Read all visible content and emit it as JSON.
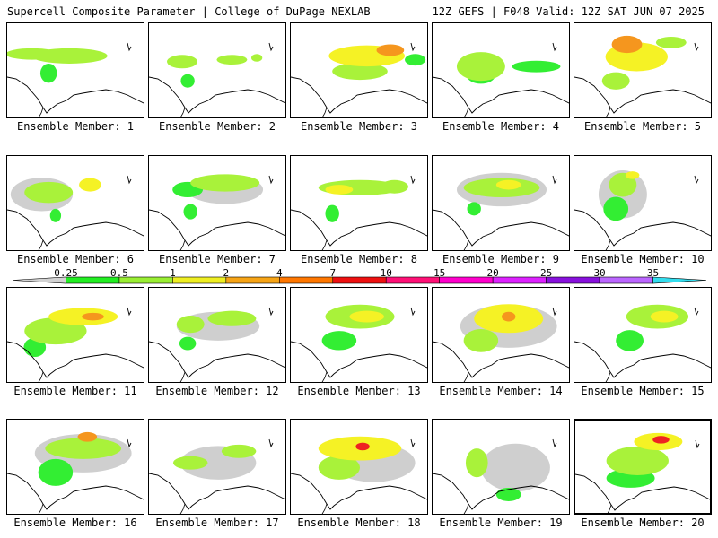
{
  "header": {
    "title_left": "Supercell Composite Parameter | College of DuPage NEXLAB",
    "title_right": "12Z GEFS | F048 Valid: 12Z SAT JUN 07 2025"
  },
  "colorbar": {
    "labels": [
      "0.25",
      "0.5",
      "1",
      "2",
      "4",
      "7",
      "10",
      "15",
      "20",
      "25",
      "30",
      "35"
    ],
    "colors": [
      "#d2d2d2",
      "#22ee22",
      "#99ee33",
      "#eeee22",
      "#f6a416",
      "#ff7700",
      "#ee1111",
      "#ff1177",
      "#ff00cc",
      "#dd22ff",
      "#8811dd",
      "#bb66ff",
      "#33ddee"
    ]
  },
  "map_colors": {
    "grey": "#cfcfcf",
    "green": "#33ee33",
    "lime": "#a9f23a",
    "yellow": "#f5f225",
    "orange": "#f5961e",
    "red": "#ee2222"
  },
  "members": [
    {
      "label": "Ensemble Member: 1",
      "blobs": [
        [
          0.18,
          0.32,
          0.38,
          0.12,
          "lime"
        ],
        [
          0.45,
          0.34,
          0.55,
          0.16,
          "lime"
        ],
        [
          0.3,
          0.52,
          0.12,
          0.2,
          "green"
        ]
      ]
    },
    {
      "label": "Ensemble Member: 2",
      "blobs": [
        [
          0.24,
          0.4,
          0.22,
          0.14,
          "lime"
        ],
        [
          0.6,
          0.38,
          0.22,
          0.1,
          "lime"
        ],
        [
          0.28,
          0.6,
          0.1,
          0.14,
          "green"
        ],
        [
          0.78,
          0.36,
          0.08,
          0.08,
          "lime"
        ]
      ]
    },
    {
      "label": "Ensemble Member: 3",
      "blobs": [
        [
          0.55,
          0.34,
          0.55,
          0.22,
          "yellow"
        ],
        [
          0.72,
          0.28,
          0.2,
          0.12,
          "orange"
        ],
        [
          0.5,
          0.5,
          0.4,
          0.18,
          "lime"
        ],
        [
          0.9,
          0.38,
          0.15,
          0.12,
          "green"
        ]
      ]
    },
    {
      "label": "Ensemble Member: 4",
      "blobs": [
        [
          0.35,
          0.45,
          0.35,
          0.3,
          "lime"
        ],
        [
          0.75,
          0.45,
          0.35,
          0.12,
          "green"
        ],
        [
          0.35,
          0.55,
          0.2,
          0.16,
          "green"
        ]
      ]
    },
    {
      "label": "Ensemble Member: 5",
      "blobs": [
        [
          0.38,
          0.22,
          0.22,
          0.18,
          "orange"
        ],
        [
          0.45,
          0.35,
          0.45,
          0.3,
          "yellow"
        ],
        [
          0.3,
          0.6,
          0.2,
          0.18,
          "lime"
        ],
        [
          0.7,
          0.2,
          0.22,
          0.12,
          "lime"
        ]
      ]
    },
    {
      "label": "Ensemble Member: 6",
      "blobs": [
        [
          0.3,
          0.38,
          0.35,
          0.22,
          "lime"
        ],
        [
          0.6,
          0.3,
          0.16,
          0.14,
          "yellow"
        ],
        [
          0.35,
          0.62,
          0.08,
          0.14,
          "green"
        ],
        [
          0.25,
          0.4,
          0.45,
          0.35,
          "grey"
        ]
      ]
    },
    {
      "label": "Ensemble Member: 7",
      "blobs": [
        [
          0.55,
          0.28,
          0.5,
          0.18,
          "lime"
        ],
        [
          0.28,
          0.35,
          0.22,
          0.16,
          "green"
        ],
        [
          0.3,
          0.58,
          0.1,
          0.16,
          "green"
        ],
        [
          0.55,
          0.35,
          0.55,
          0.3,
          "grey"
        ]
      ]
    },
    {
      "label": "Ensemble Member: 8",
      "blobs": [
        [
          0.5,
          0.33,
          0.6,
          0.16,
          "lime"
        ],
        [
          0.35,
          0.35,
          0.2,
          0.1,
          "yellow"
        ],
        [
          0.75,
          0.32,
          0.2,
          0.14,
          "lime"
        ],
        [
          0.3,
          0.6,
          0.1,
          0.18,
          "green"
        ]
      ]
    },
    {
      "label": "Ensemble Member: 9",
      "blobs": [
        [
          0.5,
          0.33,
          0.55,
          0.2,
          "lime"
        ],
        [
          0.55,
          0.3,
          0.18,
          0.1,
          "yellow"
        ],
        [
          0.3,
          0.55,
          0.1,
          0.14,
          "green"
        ],
        [
          0.5,
          0.35,
          0.65,
          0.35,
          "grey"
        ]
      ]
    },
    {
      "label": "Ensemble Member: 10",
      "blobs": [
        [
          0.35,
          0.3,
          0.2,
          0.25,
          "lime"
        ],
        [
          0.3,
          0.55,
          0.18,
          0.25,
          "green"
        ],
        [
          0.42,
          0.2,
          0.1,
          0.08,
          "yellow"
        ],
        [
          0.35,
          0.4,
          0.35,
          0.5,
          "grey"
        ]
      ]
    },
    {
      "label": "Ensemble Member: 11",
      "blobs": [
        [
          0.55,
          0.3,
          0.5,
          0.18,
          "yellow"
        ],
        [
          0.62,
          0.3,
          0.16,
          0.08,
          "orange"
        ],
        [
          0.35,
          0.45,
          0.45,
          0.28,
          "lime"
        ],
        [
          0.2,
          0.62,
          0.16,
          0.2,
          "green"
        ]
      ]
    },
    {
      "label": "Ensemble Member: 12",
      "blobs": [
        [
          0.3,
          0.38,
          0.2,
          0.18,
          "lime"
        ],
        [
          0.6,
          0.32,
          0.35,
          0.16,
          "lime"
        ],
        [
          0.28,
          0.58,
          0.12,
          0.14,
          "green"
        ],
        [
          0.5,
          0.4,
          0.6,
          0.3,
          "grey"
        ]
      ]
    },
    {
      "label": "Ensemble Member: 13",
      "blobs": [
        [
          0.5,
          0.3,
          0.5,
          0.25,
          "lime"
        ],
        [
          0.55,
          0.3,
          0.25,
          0.12,
          "yellow"
        ],
        [
          0.35,
          0.55,
          0.25,
          0.2,
          "green"
        ]
      ]
    },
    {
      "label": "Ensemble Member: 14",
      "blobs": [
        [
          0.55,
          0.32,
          0.5,
          0.3,
          "yellow"
        ],
        [
          0.55,
          0.3,
          0.1,
          0.1,
          "orange"
        ],
        [
          0.35,
          0.55,
          0.25,
          0.24,
          "lime"
        ],
        [
          0.55,
          0.4,
          0.7,
          0.45,
          "grey"
        ]
      ]
    },
    {
      "label": "Ensemble Member: 15",
      "blobs": [
        [
          0.6,
          0.3,
          0.45,
          0.25,
          "lime"
        ],
        [
          0.65,
          0.3,
          0.2,
          0.12,
          "yellow"
        ],
        [
          0.4,
          0.55,
          0.2,
          0.22,
          "green"
        ]
      ]
    },
    {
      "label": "Ensemble Member: 16",
      "blobs": [
        [
          0.55,
          0.3,
          0.55,
          0.22,
          "lime"
        ],
        [
          0.58,
          0.18,
          0.14,
          0.1,
          "orange"
        ],
        [
          0.35,
          0.55,
          0.25,
          0.28,
          "green"
        ],
        [
          0.55,
          0.35,
          0.7,
          0.4,
          "grey"
        ]
      ]
    },
    {
      "label": "Ensemble Member: 17",
      "blobs": [
        [
          0.3,
          0.45,
          0.25,
          0.14,
          "lime"
        ],
        [
          0.65,
          0.33,
          0.25,
          0.14,
          "lime"
        ],
        [
          0.5,
          0.45,
          0.55,
          0.35,
          "grey"
        ]
      ]
    },
    {
      "label": "Ensemble Member: 18",
      "blobs": [
        [
          0.5,
          0.3,
          0.6,
          0.25,
          "yellow"
        ],
        [
          0.52,
          0.28,
          0.1,
          0.08,
          "red"
        ],
        [
          0.35,
          0.5,
          0.3,
          0.25,
          "lime"
        ],
        [
          0.6,
          0.45,
          0.6,
          0.4,
          "grey"
        ]
      ]
    },
    {
      "label": "Ensemble Member: 19",
      "blobs": [
        [
          0.32,
          0.45,
          0.16,
          0.3,
          "lime"
        ],
        [
          0.55,
          0.78,
          0.18,
          0.14,
          "green"
        ],
        [
          0.6,
          0.5,
          0.5,
          0.5,
          "grey"
        ]
      ]
    },
    {
      "label": "Ensemble Member: 20",
      "blobs": [
        [
          0.6,
          0.22,
          0.35,
          0.18,
          "yellow"
        ],
        [
          0.62,
          0.2,
          0.12,
          0.08,
          "red"
        ],
        [
          0.45,
          0.42,
          0.45,
          0.3,
          "lime"
        ],
        [
          0.4,
          0.6,
          0.35,
          0.2,
          "green"
        ]
      ]
    }
  ]
}
